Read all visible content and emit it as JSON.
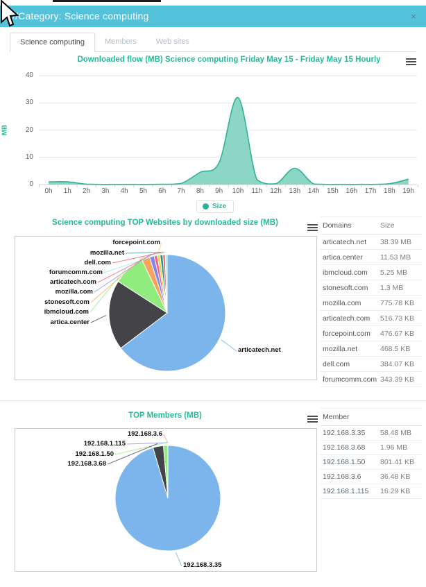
{
  "window": {
    "title": "//Category: Science computing",
    "close": "×",
    "header_color": "#55c2dc"
  },
  "tabs": [
    {
      "label": "Science computing",
      "active": true
    },
    {
      "label": "Members",
      "active": false
    },
    {
      "label": "Web sites",
      "active": false
    }
  ],
  "colors": {
    "accent": "#26b99a",
    "area_line": "#2eb398",
    "area_fill": "#8dd6c3",
    "grid": "#e6e6e6",
    "axis": "#ccd1d9",
    "palette": [
      "#7cb5ec",
      "#434348",
      "#90ed7d",
      "#f7a35c",
      "#8085e9",
      "#f15c80",
      "#e4d354",
      "#2b908f",
      "#f45b5b",
      "#91e8e1"
    ]
  },
  "chart_data": [
    {
      "type": "area",
      "title": "Downloaded flow (MB) Science computing Friday May 15 - Friday May 15 Hourly",
      "xlabel": "",
      "ylabel": "MB",
      "ylim": [
        0,
        40
      ],
      "yticks": [
        0,
        10,
        20,
        30,
        40
      ],
      "grid": true,
      "legend_position": "bottom",
      "categories": [
        "0h",
        "1h",
        "2h",
        "3h",
        "4h",
        "5h",
        "6h",
        "7h",
        "8h",
        "9h",
        "10h",
        "11h",
        "12h",
        "13h",
        "14h",
        "15h",
        "16h",
        "17h",
        "18h",
        "19h"
      ],
      "series": [
        {
          "name": "Size",
          "values": [
            1,
            1,
            0.15,
            0.05,
            0.05,
            0.05,
            0.1,
            0.4,
            4.5,
            8,
            32,
            1.8,
            0.3,
            6,
            0.2,
            0.05,
            0.05,
            0.05,
            0.3,
            2
          ]
        }
      ]
    },
    {
      "type": "pie",
      "title": "Science computing TOP Websites by downloaded size (MB)",
      "slices": [
        {
          "name": "articatech.net",
          "value_mb": 38.39,
          "color": "#7cb5ec"
        },
        {
          "name": "artica.center",
          "value_mb": 11.53,
          "color": "#434348"
        },
        {
          "name": "ibmcloud.com",
          "value_mb": 5.25,
          "color": "#90ed7d"
        },
        {
          "name": "stonesoft.com",
          "value_mb": 1.3,
          "color": "#f7a35c"
        },
        {
          "name": "mozilla.com",
          "value_mb": 0.7576,
          "color": "#8085e9"
        },
        {
          "name": "articatech.com",
          "value_mb": 0.5046,
          "color": "#f15c80"
        },
        {
          "name": "forcepoint.com",
          "value_mb": 0.4655,
          "color": "#e4d354"
        },
        {
          "name": "mozilla.net",
          "value_mb": 0.4575,
          "color": "#2b908f"
        },
        {
          "name": "dell.com",
          "value_mb": 0.3751,
          "color": "#f45b5b"
        },
        {
          "name": "forumcomm.com",
          "value_mb": 0.3353,
          "color": "#91e8e1"
        }
      ]
    },
    {
      "type": "pie",
      "title": "TOP Members (MB)",
      "slices": [
        {
          "name": "192.168.3.35",
          "value_mb": 58.48,
          "color": "#7cb5ec"
        },
        {
          "name": "192.168.3.68",
          "value_mb": 1.96,
          "color": "#434348"
        },
        {
          "name": "192.168.1.50",
          "value_mb": 0.7826,
          "color": "#90ed7d"
        },
        {
          "name": "192.168.3.6",
          "value_mb": 0.0356,
          "color": "#f7a35c"
        },
        {
          "name": "192.168.1.115",
          "value_mb": 0.0159,
          "color": "#8085e9"
        }
      ]
    }
  ],
  "websites_table": {
    "headers": [
      "Domains",
      "Size"
    ],
    "rows": [
      [
        "articatech.net",
        "38.39 MB"
      ],
      [
        "artica.center",
        "11.53 MB"
      ],
      [
        "ibmcloud.com",
        "5.25 MB"
      ],
      [
        "stonesoft.com",
        "1.3 MB"
      ],
      [
        "mozilla.com",
        "775.78 KB"
      ],
      [
        "articatech.com",
        "516.73 KB"
      ],
      [
        "forcepoint.com",
        "476.67 KB"
      ],
      [
        "mozilla.net",
        "468.5 KB"
      ],
      [
        "dell.com",
        "384.07 KB"
      ],
      [
        "forumcomm.com",
        "343.39 KB"
      ]
    ]
  },
  "members_table": {
    "headers": [
      "Member",
      ""
    ],
    "rows": [
      [
        "192.168.3.35",
        "58.48 MB"
      ],
      [
        "192.168.3.68",
        "1.96 MB"
      ],
      [
        "192.168.1.50",
        "801.41 KB"
      ],
      [
        "192.168.3.6",
        "36.48 KB"
      ],
      [
        "192.168.1.115",
        "16.29 KB"
      ]
    ]
  }
}
